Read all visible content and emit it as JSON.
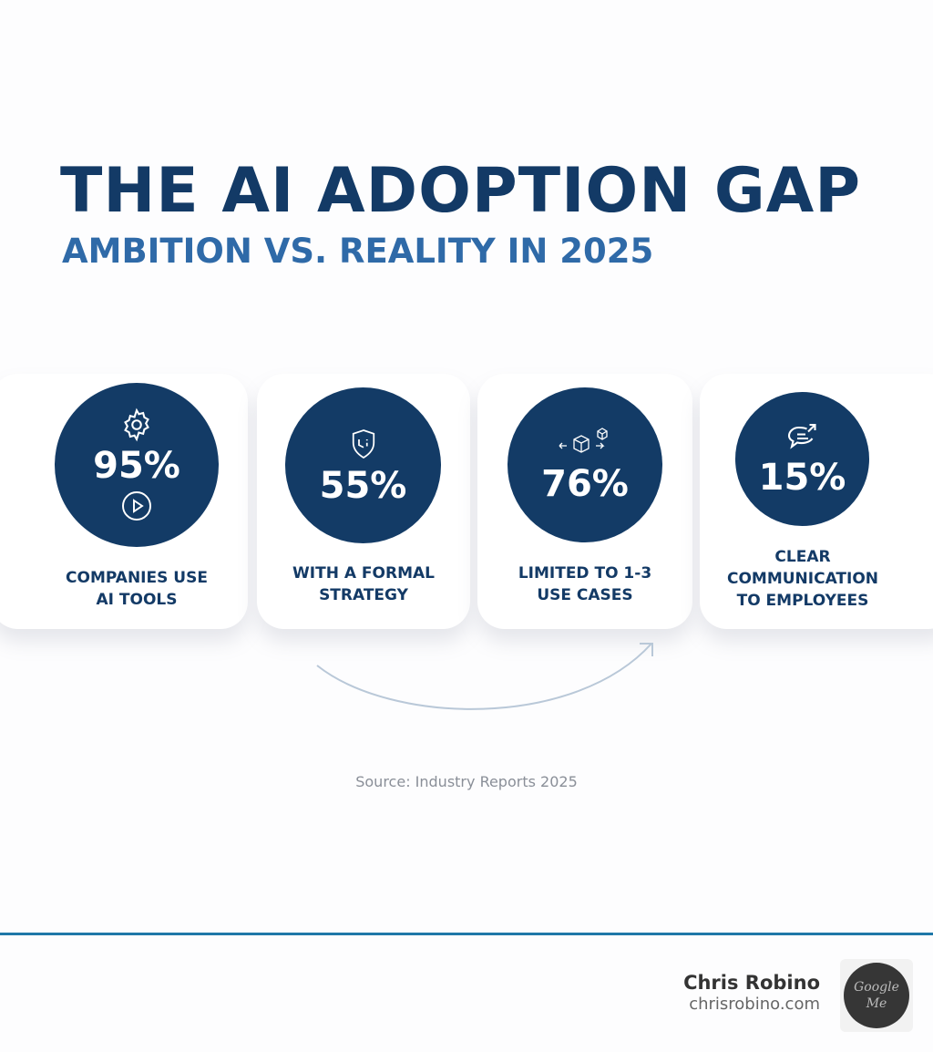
{
  "header": {
    "title": "THE AI ADOPTION GAP",
    "subtitle": "AMBITION VS. REALITY IN 2025"
  },
  "stats": [
    {
      "value": "95%",
      "label_lines": [
        "COMPANIES USE",
        "AI TOOLS"
      ],
      "icons": [
        "gear-icon",
        "play-icon"
      ]
    },
    {
      "value": "55%",
      "label_lines": [
        "WITH A FORMAL",
        "STRATEGY"
      ],
      "icons": [
        "shield-icon"
      ]
    },
    {
      "value": "76%",
      "label_lines": [
        "LIMITED TO 1-3",
        "USE CASES"
      ],
      "icons": [
        "cubes-icon"
      ]
    },
    {
      "value": "15%",
      "label_lines": [
        "CLEAR",
        "COMMUNICATION",
        "TO EMPLOYEES"
      ],
      "icons": [
        "chat-icon"
      ]
    }
  ],
  "source": "Source: Industry Reports 2025",
  "footer": {
    "author": "Chris Robino",
    "website": "chrisrobino.com",
    "logo_text": "Google Me"
  },
  "colors": {
    "primary": "#133b66",
    "accent": "#2f6aa8",
    "rule": "#1f78a8"
  }
}
